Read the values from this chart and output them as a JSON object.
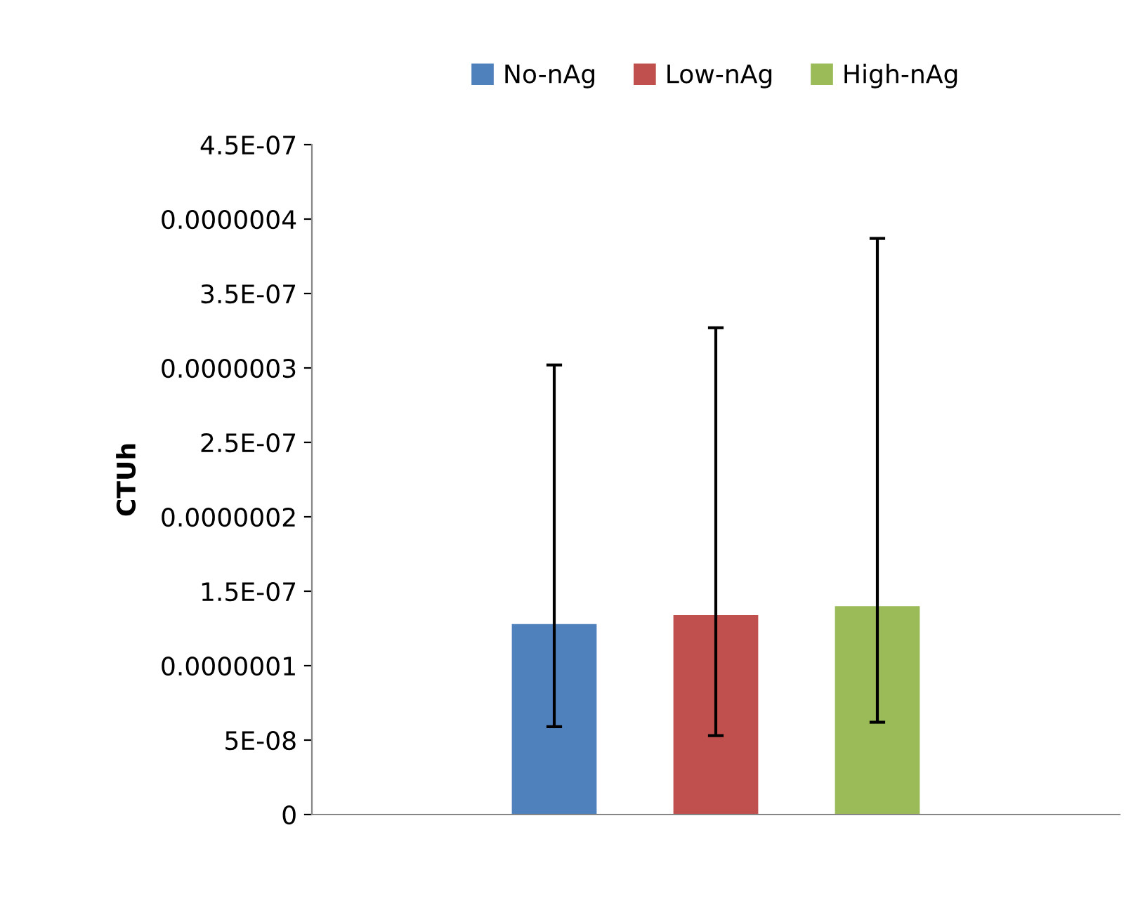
{
  "chart_data": {
    "type": "bar",
    "ylabel": "CTUh",
    "categories": [
      null
    ],
    "series": [
      {
        "name": "No-nAg",
        "color": "#4f81bd",
        "values": [
          1.28e-07
        ],
        "errors": [
          [
            5.9e-08,
            3.02e-07
          ]
        ]
      },
      {
        "name": "Low-nAg",
        "color": "#c0504d",
        "values": [
          1.34e-07
        ],
        "errors": [
          [
            5.3e-08,
            3.27e-07
          ]
        ]
      },
      {
        "name": "High-nAg",
        "color": "#9bbb59",
        "values": [
          1.4e-07
        ],
        "errors": [
          [
            6.2e-08,
            3.87e-07
          ]
        ]
      }
    ],
    "ylim": [
      0,
      4.5e-07
    ],
    "yticks": [
      0,
      {
        "value": 5e-08,
        "label": "5E-08"
      },
      {
        "value": 1e-07,
        "label": "0.0000001"
      },
      {
        "value": 1.5e-07,
        "label": "1.5E-07"
      },
      {
        "value": 2e-07,
        "label": "0.0000002"
      },
      {
        "value": 2.5e-07,
        "label": "2.5E-07"
      },
      {
        "value": 3e-07,
        "label": "0.0000003"
      },
      {
        "value": 3.5e-07,
        "label": "3.5E-07"
      },
      {
        "value": 4e-07,
        "label": "0.0000004"
      },
      {
        "value": 4.5e-07,
        "label": "4.5E-07"
      }
    ],
    "legend": "top",
    "grid": false
  }
}
